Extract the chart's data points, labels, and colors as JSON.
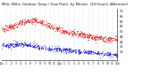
{
  "bg_color": "#ffffff",
  "plot_bg": "#ffffff",
  "grid_color": "#bbbbbb",
  "temp_color": "#dd2222",
  "dew_color": "#2222cc",
  "n_points": 1440,
  "temp_shape": [
    52,
    55,
    60,
    62,
    58,
    54,
    50,
    48,
    46,
    44,
    43,
    42
  ],
  "dew_shape": [
    36,
    37,
    38,
    36,
    34,
    33,
    32,
    31,
    30,
    29,
    28,
    27
  ],
  "noise_temp": 1.5,
  "noise_dew": 1.2,
  "ylim_min": 22,
  "ylim_max": 72,
  "yticks": [
    30,
    35,
    40,
    45,
    50,
    55,
    60,
    65,
    70
  ],
  "xlabel_fontsize": 2.2,
  "ylabel_fontsize": 2.5,
  "marker_size": 0.4,
  "vline_count": 23,
  "xtick_labels": [
    "12a",
    "1",
    "2",
    "3",
    "4",
    "5",
    "6",
    "7",
    "8",
    "9",
    "10",
    "11",
    "12p",
    "1",
    "2",
    "3",
    "4",
    "5",
    "6",
    "7",
    "8",
    "9",
    "10",
    "11",
    "12a"
  ]
}
